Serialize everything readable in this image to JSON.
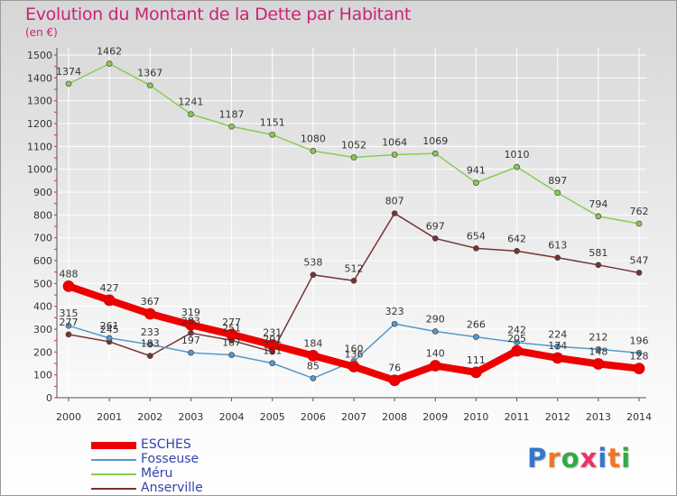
{
  "header": {
    "title": "Evolution du Montant de la Dette par Habitant",
    "unit": "(en €)"
  },
  "logo": {
    "text": "Proxiti"
  },
  "colors": {
    "title": "#cc2277",
    "axis_text": "#333333",
    "legend_text": "#3344aa",
    "grid": "#ffffff"
  },
  "chart_data": {
    "type": "line",
    "title": "Evolution du Montant de la Dette par Habitant",
    "ylabel": "(en €)",
    "xlabel": "",
    "ylim": [
      0,
      1500
    ],
    "yticks": [
      "0",
      "100",
      "200",
      "300",
      "400",
      "500",
      "600",
      "700",
      "800",
      "900",
      "1000",
      "1100",
      "1200",
      "1300",
      "1400",
      "1500"
    ],
    "categories": [
      "2000",
      "2001",
      "2002",
      "2003",
      "2004",
      "2005",
      "2006",
      "2007",
      "2008",
      "2009",
      "2010",
      "2011",
      "2012",
      "2013",
      "2014"
    ],
    "grid": true,
    "legend_position": "bottom-left",
    "series": [
      {
        "name": "ESCHES",
        "color": "#ee0000",
        "width": 8,
        "values": [
          488,
          427,
          367,
          319,
          277,
          231,
          184,
          136,
          76,
          140,
          111,
          205,
          174,
          148,
          128
        ]
      },
      {
        "name": "Fosseuse",
        "color": "#5599cc",
        "width": 1.5,
        "values": [
          315,
          261,
          233,
          197,
          187,
          151,
          85,
          160,
          323,
          290,
          266,
          242,
          224,
          212,
          196
        ]
      },
      {
        "name": "Méru",
        "color": "#88cc55",
        "width": 1.5,
        "values": [
          1374,
          1462,
          1367,
          1241,
          1187,
          1151,
          1080,
          1052,
          1064,
          1069,
          941,
          1010,
          897,
          794,
          762
        ]
      },
      {
        "name": "Anserville",
        "color": "#773333",
        "width": 1.5,
        "values": [
          277,
          245,
          183,
          283,
          251,
          201,
          538,
          512,
          807,
          697,
          654,
          642,
          613,
          581,
          547
        ]
      }
    ]
  }
}
